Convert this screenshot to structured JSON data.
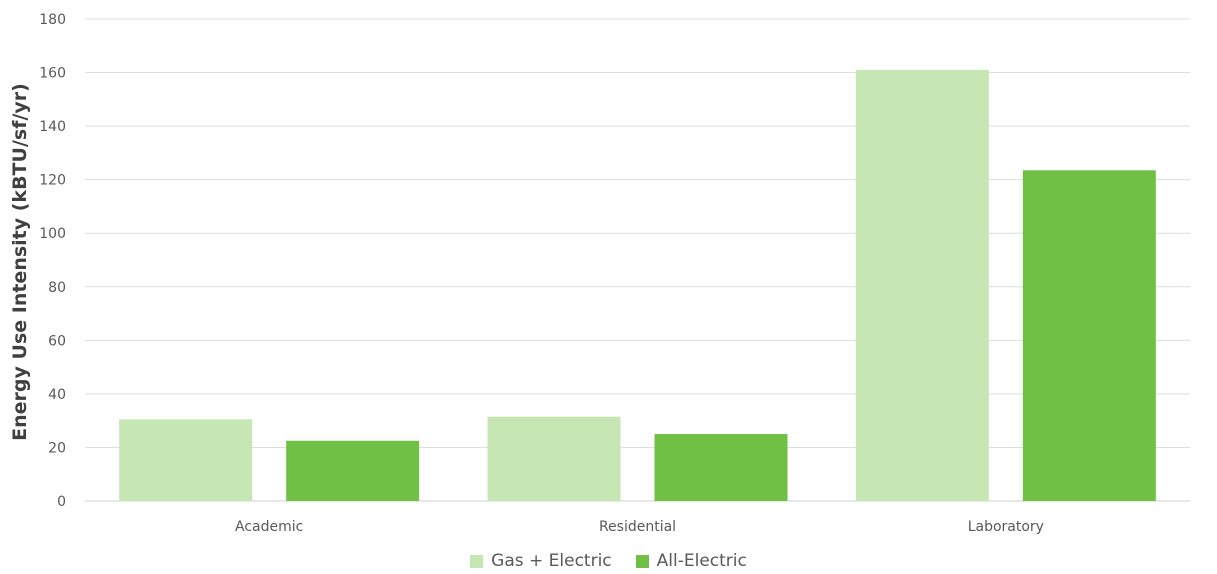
{
  "chart_data": {
    "type": "bar",
    "categories": [
      "Academic",
      "Residential",
      "Laboratory"
    ],
    "series": [
      {
        "name": "Gas + Electric",
        "color": "#c6e6b4",
        "values": [
          30.5,
          31.5,
          161
        ]
      },
      {
        "name": "All-Electric",
        "color": "#70c046",
        "values": [
          22.5,
          25,
          123.5
        ]
      }
    ],
    "ylabel": "Energy Use Intensity (kBTU/sf/yr)",
    "ylim": [
      0,
      180
    ],
    "yticks": [
      0,
      20,
      40,
      60,
      80,
      100,
      120,
      140,
      160,
      180
    ],
    "grid": true,
    "legend_position": "bottom"
  }
}
